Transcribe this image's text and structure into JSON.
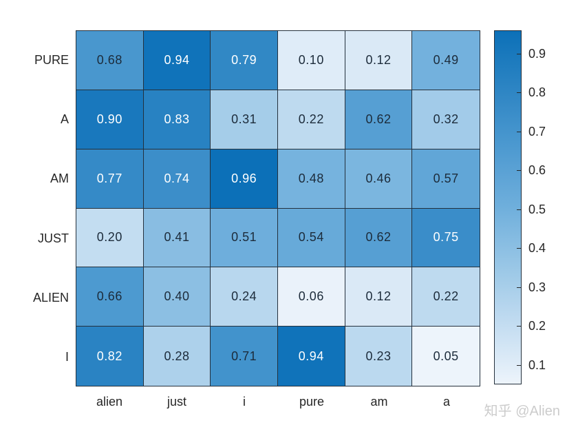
{
  "watermark": "知乎 @Alien",
  "chart_data": {
    "type": "heatmap",
    "title": "",
    "rows": [
      "PURE",
      "A",
      "AM",
      "JUST",
      "ALIEN",
      "I"
    ],
    "columns": [
      "alien",
      "just",
      "i",
      "pure",
      "am",
      "a"
    ],
    "values": [
      [
        0.68,
        0.94,
        0.79,
        0.1,
        0.12,
        0.49
      ],
      [
        0.9,
        0.83,
        0.31,
        0.22,
        0.62,
        0.32
      ],
      [
        0.77,
        0.74,
        0.96,
        0.48,
        0.46,
        0.57
      ],
      [
        0.2,
        0.41,
        0.51,
        0.54,
        0.62,
        0.75
      ],
      [
        0.66,
        0.4,
        0.24,
        0.06,
        0.12,
        0.22
      ],
      [
        0.82,
        0.28,
        0.71,
        0.94,
        0.23,
        0.05
      ]
    ],
    "value_format_decimals": 2,
    "color_limits": [
      0.05,
      0.96
    ],
    "colorbar_ticks": [
      0.1,
      0.2,
      0.3,
      0.4,
      0.5,
      0.6,
      0.7,
      0.8,
      0.9
    ],
    "colormap": {
      "low": "#edf4fb",
      "mid": "#6fafdc",
      "high": "#0c70b8"
    },
    "grid": true,
    "legend_position": "right",
    "grid_line_color": "#24303c",
    "label_color": "#262626",
    "cell_text_dark": "#1c2b3a",
    "cell_text_light": "#ffffff",
    "white_text_threshold": 0.74
  }
}
